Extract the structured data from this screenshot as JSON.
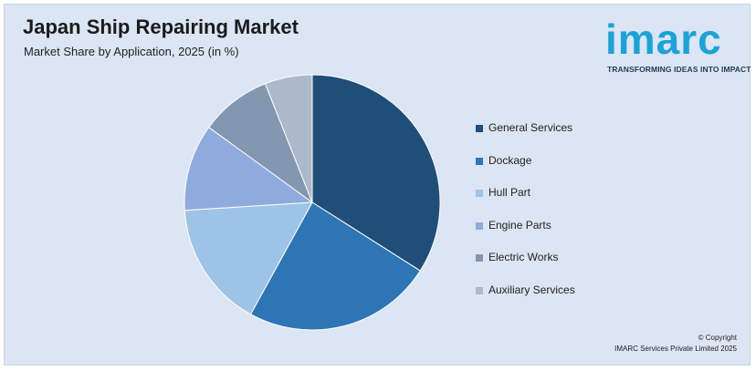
{
  "header": {
    "title": "Japan Ship Repairing Market",
    "subtitle": "Market Share by Application, 2025 (in %)"
  },
  "logo": {
    "word": "imarc",
    "tagline": "TRANSFORMING IDEAS INTO IMPACT",
    "color": "#1aa3d8"
  },
  "footer": {
    "copyright_line1": "© Copyright",
    "copyright_line2": "IMARC Services Private Limited 2025"
  },
  "chart_data": {
    "type": "pie",
    "categories": [
      "General Services",
      "Dockage",
      "Hull Part",
      "Engine Parts",
      "Electric Works",
      "Auxiliary Services"
    ],
    "values": [
      34,
      24,
      16,
      11,
      9,
      6
    ],
    "colors": [
      "#1f4e79",
      "#2e75b6",
      "#9dc3e6",
      "#8faadc",
      "#8497b0",
      "#adb9ca"
    ],
    "legend_position": "right"
  }
}
